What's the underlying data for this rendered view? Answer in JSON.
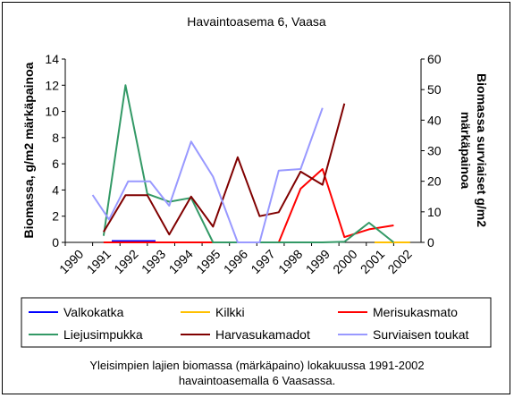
{
  "chart_data": {
    "type": "line",
    "title": "Havaintoasema 6, Vaasa",
    "ylabel": "Biomassa, g/m2 märkäpainoa",
    "y2label_line1": "Biomassa surviaiset g/m2",
    "y2label_line2": "märkäpainoa",
    "x": [
      "1990",
      "1991",
      "1992",
      "1993",
      "1994",
      "1995",
      "1996",
      "1997",
      "1998",
      "1999",
      "2000",
      "2001",
      "2002"
    ],
    "ylim": [
      0,
      14
    ],
    "yticks": [
      "0",
      "2",
      "4",
      "6",
      "8",
      "10",
      "12",
      "14"
    ],
    "y2lim": [
      0,
      60
    ],
    "y2ticks": [
      "0",
      "10",
      "20",
      "30",
      "40",
      "50",
      "60"
    ],
    "grid": false,
    "legend_position": "bottom",
    "series": [
      {
        "name": "Valkokatka",
        "color": "#0000ff",
        "axis": "left",
        "points": [
          [
            1991.7,
            0.1
          ],
          [
            1993.3,
            0.1
          ]
        ]
      },
      {
        "name": "Kilkki",
        "color": "#ffc000",
        "axis": "left",
        "points": [
          [
            2001.3,
            0.0
          ],
          [
            2002.6,
            0.0
          ]
        ]
      },
      {
        "name": "Merisukasmato",
        "color": "#ff0000",
        "axis": "left",
        "points": [
          [
            1991.4,
            0
          ],
          [
            1992.2,
            0
          ],
          [
            1993.0,
            0
          ],
          [
            1993.8,
            0
          ],
          [
            1994.6,
            0
          ],
          [
            1995.4,
            0
          ],
          [
            1996.3,
            0
          ],
          [
            1997.1,
            0
          ],
          [
            1997.8,
            0
          ],
          [
            1998.6,
            4.1
          ],
          [
            1999.4,
            5.6
          ],
          [
            2000.2,
            0.4
          ],
          [
            2001.1,
            1.0
          ],
          [
            2002.0,
            1.3
          ]
        ]
      },
      {
        "name": "Liejusimpukka",
        "color": "#339966",
        "axis": "left",
        "points": [
          [
            1991.4,
            0.5
          ],
          [
            1992.2,
            12.0
          ],
          [
            1993.0,
            3.7
          ],
          [
            1993.8,
            3.1
          ],
          [
            1994.6,
            3.4
          ],
          [
            1995.4,
            0
          ],
          [
            1996.3,
            0
          ],
          [
            1997.1,
            0
          ],
          [
            1997.8,
            0
          ],
          [
            1998.6,
            0
          ],
          [
            1999.4,
            0
          ],
          [
            2000.2,
            0.05
          ],
          [
            2001.1,
            1.5
          ],
          [
            2002.0,
            0
          ]
        ]
      },
      {
        "name": "Harvasukamadot",
        "color": "#800000",
        "axis": "left",
        "points": [
          [
            1991.4,
            0.8
          ],
          [
            1992.2,
            3.6
          ],
          [
            1993.0,
            3.6
          ],
          [
            1993.8,
            0.6
          ],
          [
            1994.6,
            3.5
          ],
          [
            1995.4,
            1.2
          ],
          [
            1996.3,
            6.5
          ],
          [
            1997.1,
            2.0
          ],
          [
            1997.8,
            2.3
          ],
          [
            1998.6,
            5.4
          ],
          [
            1999.4,
            4.4
          ],
          [
            2000.2,
            10.6
          ]
        ]
      },
      {
        "name": "Surviaisen toukat",
        "color": "#9999ff",
        "axis": "right",
        "points": [
          [
            1991.0,
            15.5
          ],
          [
            1991.6,
            7.5
          ],
          [
            1992.3,
            20.0
          ],
          [
            1993.1,
            20.0
          ],
          [
            1993.8,
            12.0
          ],
          [
            1994.6,
            33.0
          ],
          [
            1995.4,
            21.5
          ],
          [
            1996.3,
            0
          ],
          [
            1997.1,
            0
          ],
          [
            1997.8,
            23.5
          ],
          [
            1998.6,
            24.0
          ],
          [
            1999.4,
            44.0
          ]
        ]
      }
    ]
  },
  "caption": {
    "line1": "Yleisimpien lajien biomassa (märkäpaino) lokakuussa 1991-2002",
    "line2": "havaintoasemalla 6 Vaasassa."
  }
}
